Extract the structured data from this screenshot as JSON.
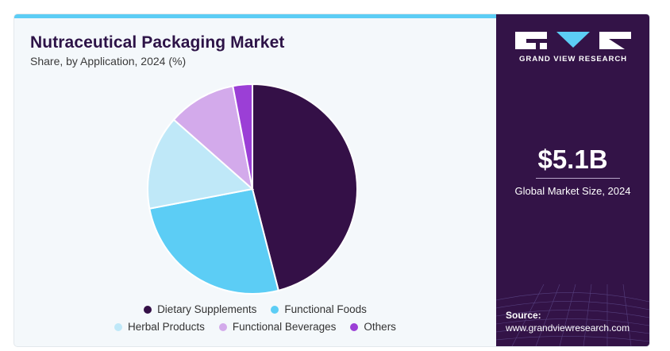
{
  "header": {
    "title": "Nutraceutical Packaging Market",
    "subtitle": "Share, by Application, 2024 (%)"
  },
  "chart_data": {
    "type": "pie",
    "title": "Nutraceutical Packaging Market",
    "subtitle": "Share, by Application, 2024 (%)",
    "categories": [
      "Dietary Supplements",
      "Functional Foods",
      "Herbal Products",
      "Functional Beverages",
      "Others"
    ],
    "values": [
      46,
      26,
      14.5,
      10.5,
      3
    ],
    "colors": [
      "#341047",
      "#5ccdf5",
      "#bfe8f8",
      "#d3aaeb",
      "#9b3fd6"
    ],
    "start_angle_deg": 0,
    "direction": "clockwise",
    "legend_position": "bottom"
  },
  "legend": {
    "row1": [
      {
        "label": "Dietary Supplements",
        "color": "#341047"
      },
      {
        "label": "Functional Foods",
        "color": "#5ccdf5"
      }
    ],
    "row2": [
      {
        "label": "Herbal Products",
        "color": "#bfe8f8"
      },
      {
        "label": "Functional Beverages",
        "color": "#d3aaeb"
      },
      {
        "label": "Others",
        "color": "#9b3fd6"
      }
    ]
  },
  "sidebar": {
    "brand": "GRAND VIEW RESEARCH",
    "market_value": "$5.1B",
    "market_label": "Global Market Size, 2024",
    "source_label": "Source:",
    "source_url": "www.grandviewresearch.com"
  },
  "colors": {
    "background": "#f4f8fb",
    "sidebar": "#331347",
    "accent": "#5ccdf5",
    "title": "#2d1347"
  }
}
